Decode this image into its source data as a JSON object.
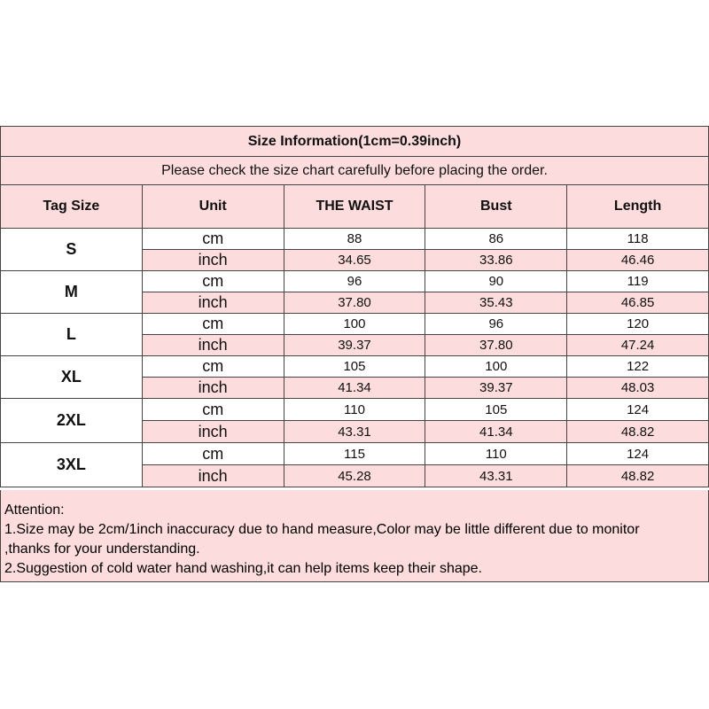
{
  "title": "Size Information(1cm=0.39inch)",
  "subtitle": "Please check the size chart carefully before placing the order.",
  "headers": [
    "Tag Size",
    "Unit",
    "THE WAIST",
    "Bust",
    "Length"
  ],
  "rows": [
    {
      "size": "S",
      "cm": [
        "88",
        "86",
        "118"
      ],
      "inch": [
        "34.65",
        "33.86",
        "46.46"
      ]
    },
    {
      "size": "M",
      "cm": [
        "96",
        "90",
        "119"
      ],
      "inch": [
        "37.80",
        "35.43",
        "46.85"
      ]
    },
    {
      "size": "L",
      "cm": [
        "100",
        "96",
        "120"
      ],
      "inch": [
        "39.37",
        "37.80",
        "47.24"
      ]
    },
    {
      "size": "XL",
      "cm": [
        "105",
        "100",
        "122"
      ],
      "inch": [
        "41.34",
        "39.37",
        "48.03"
      ]
    },
    {
      "size": "2XL",
      "cm": [
        "110",
        "105",
        "124"
      ],
      "inch": [
        "43.31",
        "41.34",
        "48.82"
      ]
    },
    {
      "size": "3XL",
      "cm": [
        "115",
        "110",
        "124"
      ],
      "inch": [
        "45.28",
        "43.31",
        "48.82"
      ]
    }
  ],
  "units": {
    "cm": "cm",
    "inch": "inch"
  },
  "attention": {
    "heading": "Attention:",
    "lines": [
      "1.Size may be 2cm/1inch inaccuracy due to hand measure,Color may be little different due to monitor",
      ",thanks for your understanding.",
      "2.Suggestion of cold water hand washing,it can help items keep their shape."
    ]
  },
  "colors": {
    "pink": "#fcdcdc",
    "border": "#444444"
  }
}
